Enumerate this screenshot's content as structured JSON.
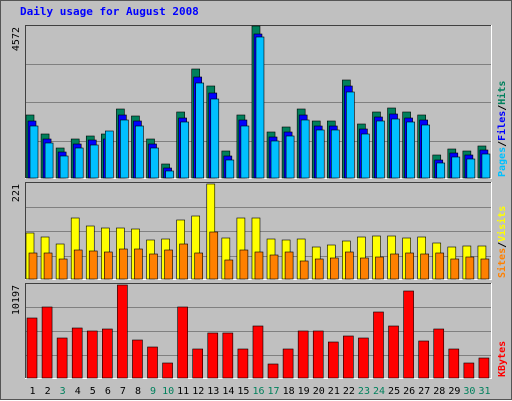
{
  "title": "Daily usage for August 2008",
  "colors": {
    "background": "#c0c0c0",
    "hits": "#00805c",
    "files": "#0000ff",
    "pages": "#00c0ff",
    "visits": "#ffff00",
    "sites": "#ff8000",
    "kbytes": "#ff0000",
    "weekday_label": "#000000",
    "weekend_label": "#00805c"
  },
  "chart_data": [
    {
      "type": "bar",
      "panel": "top",
      "ymax_label": "4572",
      "ylim": [
        0,
        4572
      ],
      "legend_right": [
        {
          "name": "Pages",
          "color": "#00c0ff"
        },
        {
          "name": "/",
          "color": "#000000"
        },
        {
          "name": "Files",
          "color": "#0000ff"
        },
        {
          "name": "/",
          "color": "#000000"
        },
        {
          "name": "Hits",
          "color": "#00805c"
        }
      ],
      "categories": [
        "1",
        "2",
        "3",
        "4",
        "5",
        "6",
        "7",
        "8",
        "9",
        "10",
        "11",
        "12",
        "13",
        "14",
        "15",
        "16",
        "17",
        "18",
        "19",
        "20",
        "21",
        "22",
        "23",
        "24",
        "25",
        "26",
        "27",
        "28",
        "29",
        "30",
        "31"
      ],
      "series": [
        {
          "name": "Hits",
          "values": [
            1890,
            1320,
            910,
            1180,
            1270,
            1310,
            2080,
            1860,
            1170,
            430,
            1990,
            3280,
            2760,
            800,
            1900,
            4570,
            1380,
            1520,
            2070,
            1710,
            1720,
            2960,
            1610,
            1980,
            2100,
            1980,
            1880,
            680,
            880,
            810,
            960
          ]
        },
        {
          "name": "Files",
          "values": [
            1800,
            1270,
            870,
            1120,
            1220,
            1260,
            1990,
            1800,
            1120,
            400,
            1910,
            3140,
            2640,
            760,
            1820,
            4430,
            1320,
            1470,
            1990,
            1650,
            1660,
            2860,
            1560,
            1920,
            2030,
            1910,
            1820,
            640,
            840,
            780,
            920
          ]
        },
        {
          "name": "Pages",
          "values": [
            1740,
            1230,
            840,
            1080,
            1180,
            1600,
            1930,
            1750,
            1080,
            380,
            1850,
            3040,
            2560,
            730,
            1750,
            4420,
            1280,
            1430,
            1930,
            1610,
            1610,
            2780,
            1510,
            1880,
            1970,
            1850,
            1760,
            620,
            820,
            760,
            900
          ]
        }
      ]
    },
    {
      "type": "bar",
      "panel": "middle",
      "ymax_label": "221",
      "ylim": [
        0,
        221
      ],
      "legend_right": [
        {
          "name": "Sites",
          "color": "#ff8000"
        },
        {
          "name": "/",
          "color": "#000000"
        },
        {
          "name": "Visits",
          "color": "#ffff00"
        }
      ],
      "categories": [
        "1",
        "2",
        "3",
        "4",
        "5",
        "6",
        "7",
        "8",
        "9",
        "10",
        "11",
        "12",
        "13",
        "14",
        "15",
        "16",
        "17",
        "18",
        "19",
        "20",
        "21",
        "22",
        "23",
        "24",
        "25",
        "26",
        "27",
        "28",
        "29",
        "30",
        "31"
      ],
      "series": [
        {
          "name": "Visits",
          "values": [
            106,
            96,
            81,
            141,
            123,
            117,
            117,
            115,
            90,
            93,
            136,
            146,
            218,
            94,
            140,
            141,
            92,
            89,
            91,
            73,
            78,
            87,
            97,
            100,
            99,
            94,
            96,
            82,
            74,
            75,
            77
          ]
        },
        {
          "name": "Sites",
          "values": [
            61,
            59,
            45,
            66,
            64,
            63,
            68,
            69,
            58,
            66,
            80,
            59,
            108,
            44,
            67,
            63,
            55,
            63,
            41,
            45,
            49,
            62,
            49,
            50,
            57,
            61,
            57,
            61,
            47,
            50,
            45
          ]
        }
      ]
    },
    {
      "type": "bar",
      "panel": "bottom",
      "ymax_label": "10197",
      "ylim": [
        0,
        10197
      ],
      "legend_right": [
        {
          "name": "KBytes",
          "color": "#ff0000"
        }
      ],
      "categories": [
        "1",
        "2",
        "3",
        "4",
        "5",
        "6",
        "7",
        "8",
        "9",
        "10",
        "11",
        "12",
        "13",
        "14",
        "15",
        "16",
        "17",
        "18",
        "19",
        "20",
        "21",
        "22",
        "23",
        "24",
        "25",
        "26",
        "27",
        "28",
        "29",
        "30",
        "31"
      ],
      "series": [
        {
          "name": "KBytes",
          "values": [
            6500,
            7730,
            4310,
            5450,
            5060,
            5330,
            10140,
            4150,
            3370,
            1660,
            7670,
            3110,
            4870,
            4870,
            3190,
            5610,
            1560,
            3190,
            5100,
            5100,
            3950,
            4560,
            4310,
            7170,
            5610,
            9410,
            4030,
            5340,
            3190,
            1640,
            2140
          ]
        }
      ]
    }
  ],
  "weekend_days": [
    "3",
    "9",
    "10",
    "16",
    "17",
    "23",
    "24",
    "30",
    "31"
  ]
}
